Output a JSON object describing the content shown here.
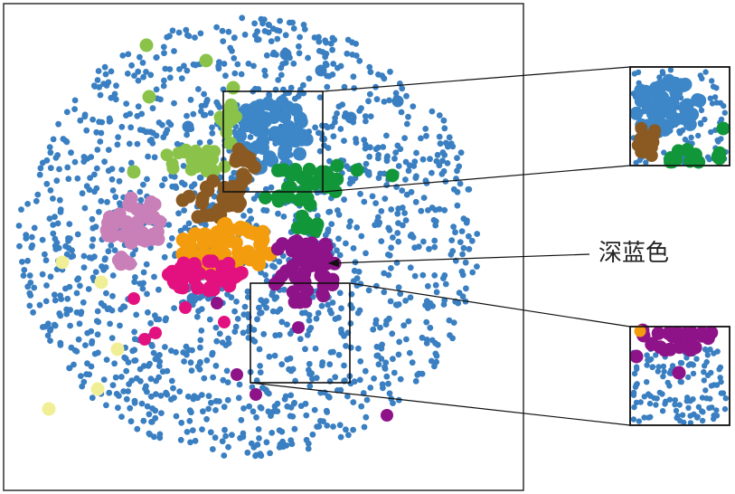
{
  "annotation": {
    "label": "深蓝色"
  },
  "colors": {
    "background_dots": "#3a7fc1",
    "light_blue_cluster": "#3d87c8",
    "light_green": "#8bc34a",
    "dark_green": "#12963a",
    "brown": "#8a5a22",
    "orange": "#f39c0d",
    "pink": "#c97fb8",
    "magenta": "#e3117f",
    "purple": "#8e1288",
    "pale_yellow": "#f0ef95",
    "stroke": "#111111"
  }
}
